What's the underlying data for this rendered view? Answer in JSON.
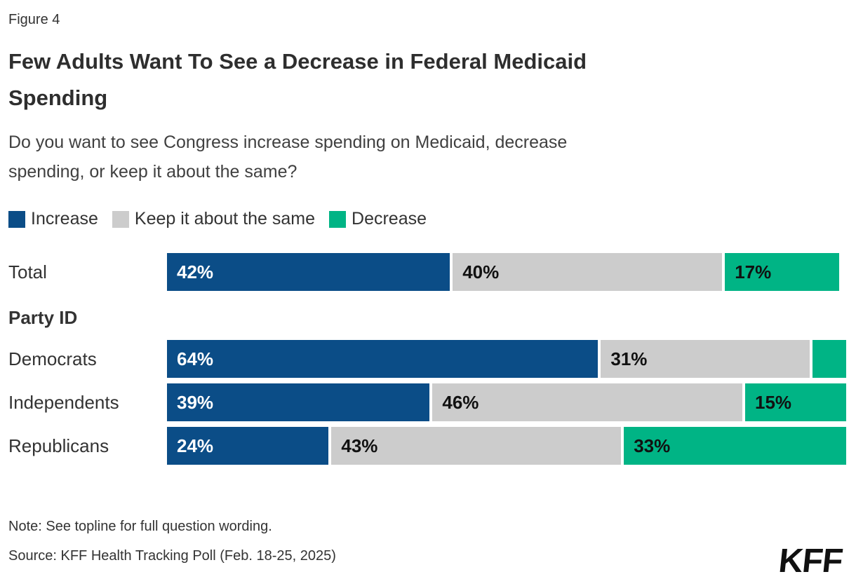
{
  "figure": {
    "label": "Figure 4",
    "title": "Few Adults Want To See a Decrease in Federal Medicaid Spending",
    "title_lines": [
      "Few Adults Want To See a Decrease in Federal Medicaid",
      "Spending"
    ],
    "subtitle": "Do you want to see Congress increase spending on Medicaid, decrease spending, or keep it about the same?",
    "subtitle_lines": [
      "Do you want to see Congress increase spending on Medicaid, decrease",
      "spending, or keep it about the same?"
    ],
    "note": "Note: See topline for full question wording.",
    "source": "Source: KFF Health Tracking Poll (Feb. 18-25, 2025)",
    "logo_text": "KFF"
  },
  "colors": {
    "increase": "#0B4D87",
    "keep_same": "#CCCCCC",
    "decrease": "#00B485",
    "text": "#333333"
  },
  "legend": {
    "items": [
      {
        "label": "Increase",
        "color": "#0B4D87"
      },
      {
        "label": "Keep it about the same",
        "color": "#CCCCCC"
      },
      {
        "label": "Decrease",
        "color": "#00B485"
      }
    ]
  },
  "chart_data": {
    "type": "bar",
    "stacked": true,
    "orientation": "horizontal",
    "unit": "percent",
    "xlim": [
      0,
      100
    ],
    "grid": false,
    "legend_position": "top",
    "categories": [
      "Total",
      "Democrats",
      "Independents",
      "Republicans"
    ],
    "series": [
      {
        "name": "Increase",
        "color": "#0B4D87",
        "label_color": "#FFFFFF",
        "values": [
          42,
          64,
          39,
          24
        ]
      },
      {
        "name": "Keep it about the same",
        "color": "#CCCCCC",
        "label_color": "#111111",
        "values": [
          40,
          31,
          46,
          43
        ]
      },
      {
        "name": "Decrease",
        "color": "#00B485",
        "label_color": "#111111",
        "values": [
          17,
          5,
          15,
          33
        ]
      }
    ],
    "value_labels": [
      [
        "42%",
        "40%",
        "17%"
      ],
      [
        "64%",
        "31%",
        ""
      ],
      [
        "39%",
        "46%",
        "15%"
      ],
      [
        "24%",
        "43%",
        "33%"
      ]
    ],
    "section_header": {
      "label": "Party ID",
      "after_category": "Total"
    }
  }
}
